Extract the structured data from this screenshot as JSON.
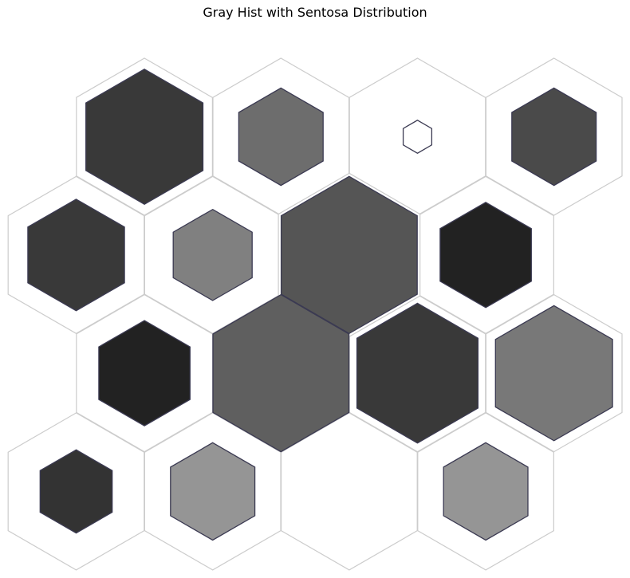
{
  "chart_data": {
    "type": "heatmap",
    "subtype": "hexbin",
    "title": "Gray Hist with Sentosa Distribution",
    "xlabel": "",
    "ylabel": "",
    "grid": false,
    "legend": "none",
    "colors": {
      "cell_outline": "#cccccc",
      "hex_edge": "#3b3a52",
      "background": "#ffffff"
    },
    "cells": [
      {
        "col": 0.5,
        "row": 0,
        "size": 0.86,
        "shade": "#393939"
      },
      {
        "col": 1.5,
        "row": 0,
        "size": 0.62,
        "shade": "#6d6d6d"
      },
      {
        "col": 2.5,
        "row": 0,
        "size": 0.21,
        "shade": "#ffffff"
      },
      {
        "col": 3.5,
        "row": 0,
        "size": 0.62,
        "shade": "#4a4a4a"
      },
      {
        "col": 0,
        "row": 1,
        "size": 0.71,
        "shade": "#393939"
      },
      {
        "col": 1,
        "row": 1,
        "size": 0.58,
        "shade": "#808080"
      },
      {
        "col": 2,
        "row": 1,
        "size": 1.0,
        "shade": "#555555",
        "highlighted": true
      },
      {
        "col": 3,
        "row": 1,
        "size": 0.67,
        "shade": "#222222"
      },
      {
        "col": 0.5,
        "row": 2,
        "size": 0.67,
        "shade": "#222222"
      },
      {
        "col": 1.5,
        "row": 2,
        "size": 1.0,
        "shade": "#5f5f5f"
      },
      {
        "col": 2.5,
        "row": 2,
        "size": 0.89,
        "shade": "#393939"
      },
      {
        "col": 3.5,
        "row": 2,
        "size": 0.86,
        "shade": "#787878"
      },
      {
        "col": 0,
        "row": 3,
        "size": 0.53,
        "shade": "#333333"
      },
      {
        "col": 1,
        "row": 3,
        "size": 0.62,
        "shade": "#959595"
      },
      {
        "col": 2,
        "row": 3,
        "size": 0.0,
        "shade": "#ffffff"
      },
      {
        "col": 3,
        "row": 3,
        "size": 0.62,
        "shade": "#959595"
      }
    ]
  }
}
